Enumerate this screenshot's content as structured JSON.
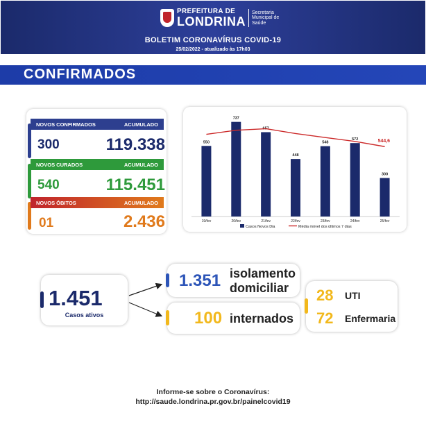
{
  "header": {
    "logo_prefix": "PREFEITURA DE",
    "logo_city": "LONDRINA",
    "logo_secretaria": [
      "Secretaria",
      "Municipal de",
      "Saúde"
    ],
    "title": "BOLETIM CORONAVÍRUS COVID-19",
    "date": "25/02/2022 - atualizado às 17h03"
  },
  "section_title": "CONFIRMADOS",
  "summary": {
    "confirmados": {
      "label": "NOVOS CONFIRMADOS",
      "acc_label": "ACUMULADO",
      "new": "300",
      "total": "119.338",
      "color": "#2d3f8f"
    },
    "curados": {
      "label": "NOVOS CURADOS",
      "acc_label": "ACUMULADO",
      "new": "540",
      "total": "115.451",
      "color": "#2e9a3b"
    },
    "obitos": {
      "label": "NOVOS ÓBITOS",
      "acc_label": "ACUMULADO",
      "new": "01",
      "total": "2.436",
      "color": "#e07a1c"
    }
  },
  "chart_data": {
    "type": "bar",
    "categories": [
      "19/fev",
      "20/fev",
      "21/fev",
      "22/fev",
      "23/fev",
      "24/fev",
      "25/fev"
    ],
    "series": [
      {
        "name": "Casos Novos Dia",
        "type": "bar",
        "values": [
          550,
          737,
          657,
          448,
          548,
          572,
          300
        ],
        "labels": [
          "550",
          "737",
          "657",
          "448",
          "548",
          "572",
          "300"
        ],
        "color": "#1b2a6b"
      },
      {
        "name": "Média móvel dos últimos 7 dias",
        "type": "line",
        "values": [
          640,
          672,
          684,
          646,
          615,
          585,
          544.6
        ],
        "color": "#cc2a2a"
      }
    ],
    "highlight_label": "544,6",
    "ylim": [
      0,
      800
    ]
  },
  "ativos": {
    "total": "1.451",
    "label": "Casos ativos",
    "isolamento_value": "1.351",
    "isolamento_label_1": "isolamento",
    "isolamento_label_2": "domiciliar",
    "internados_value": "100",
    "internados_label": "internados",
    "uti_value": "28",
    "uti_label": "UTI",
    "enfermaria_value": "72",
    "enfermaria_label": "Enfermaria"
  },
  "footer": {
    "line1": "Informe-se sobre o Coronavírus:",
    "line2": "http://saude.londrina.pr.gov.br/painelcovid19"
  }
}
